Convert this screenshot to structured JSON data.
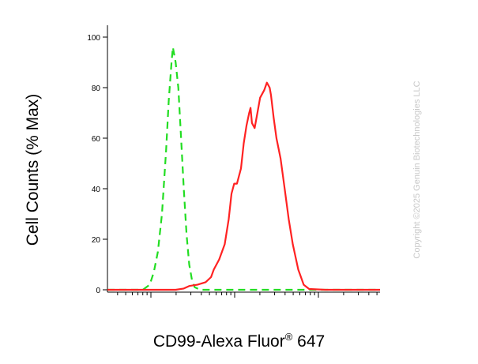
{
  "chart_data": {
    "type": "line",
    "ylabel": "Cell Counts (% Max)",
    "xlabel_main": "CD99-Alexa Fluor",
    "xlabel_sup": "®",
    "xlabel_tail": " 647",
    "ylim": [
      0,
      100
    ],
    "yticks": [
      0,
      20,
      40,
      60,
      80,
      100
    ],
    "xlim": [
      0,
      1
    ],
    "series": [
      {
        "color": "#22dd22",
        "dash": "dashed",
        "points": [
          [
            0.0,
            0
          ],
          [
            0.13,
            0
          ],
          [
            0.155,
            2
          ],
          [
            0.17,
            7
          ],
          [
            0.185,
            15
          ],
          [
            0.2,
            30
          ],
          [
            0.215,
            55
          ],
          [
            0.225,
            75
          ],
          [
            0.235,
            90
          ],
          [
            0.24,
            96
          ],
          [
            0.25,
            90
          ],
          [
            0.26,
            80
          ],
          [
            0.27,
            60
          ],
          [
            0.28,
            40
          ],
          [
            0.29,
            22
          ],
          [
            0.3,
            10
          ],
          [
            0.31,
            4
          ],
          [
            0.32,
            1
          ],
          [
            0.34,
            0
          ],
          [
            1.0,
            0
          ]
        ]
      },
      {
        "color": "#ff2222",
        "dash": "solid",
        "points": [
          [
            0.0,
            0
          ],
          [
            0.25,
            0
          ],
          [
            0.28,
            0.5
          ],
          [
            0.3,
            1.5
          ],
          [
            0.33,
            2
          ],
          [
            0.36,
            3
          ],
          [
            0.38,
            5
          ],
          [
            0.39,
            8
          ],
          [
            0.41,
            12
          ],
          [
            0.43,
            18
          ],
          [
            0.445,
            28
          ],
          [
            0.455,
            38
          ],
          [
            0.465,
            42
          ],
          [
            0.475,
            42
          ],
          [
            0.49,
            48
          ],
          [
            0.5,
            58
          ],
          [
            0.51,
            65
          ],
          [
            0.52,
            70
          ],
          [
            0.525,
            72
          ],
          [
            0.53,
            66
          ],
          [
            0.54,
            64
          ],
          [
            0.55,
            70
          ],
          [
            0.56,
            76
          ],
          [
            0.575,
            79
          ],
          [
            0.585,
            82
          ],
          [
            0.595,
            80
          ],
          [
            0.6,
            77
          ],
          [
            0.61,
            68
          ],
          [
            0.62,
            60
          ],
          [
            0.635,
            52
          ],
          [
            0.65,
            40
          ],
          [
            0.665,
            28
          ],
          [
            0.68,
            18
          ],
          [
            0.7,
            8
          ],
          [
            0.72,
            2
          ],
          [
            0.74,
            0.3
          ],
          [
            0.8,
            0
          ],
          [
            1.0,
            0
          ]
        ]
      }
    ]
  },
  "watermark": "Copyright ©2025 Genuin Biotechnologies LLC"
}
